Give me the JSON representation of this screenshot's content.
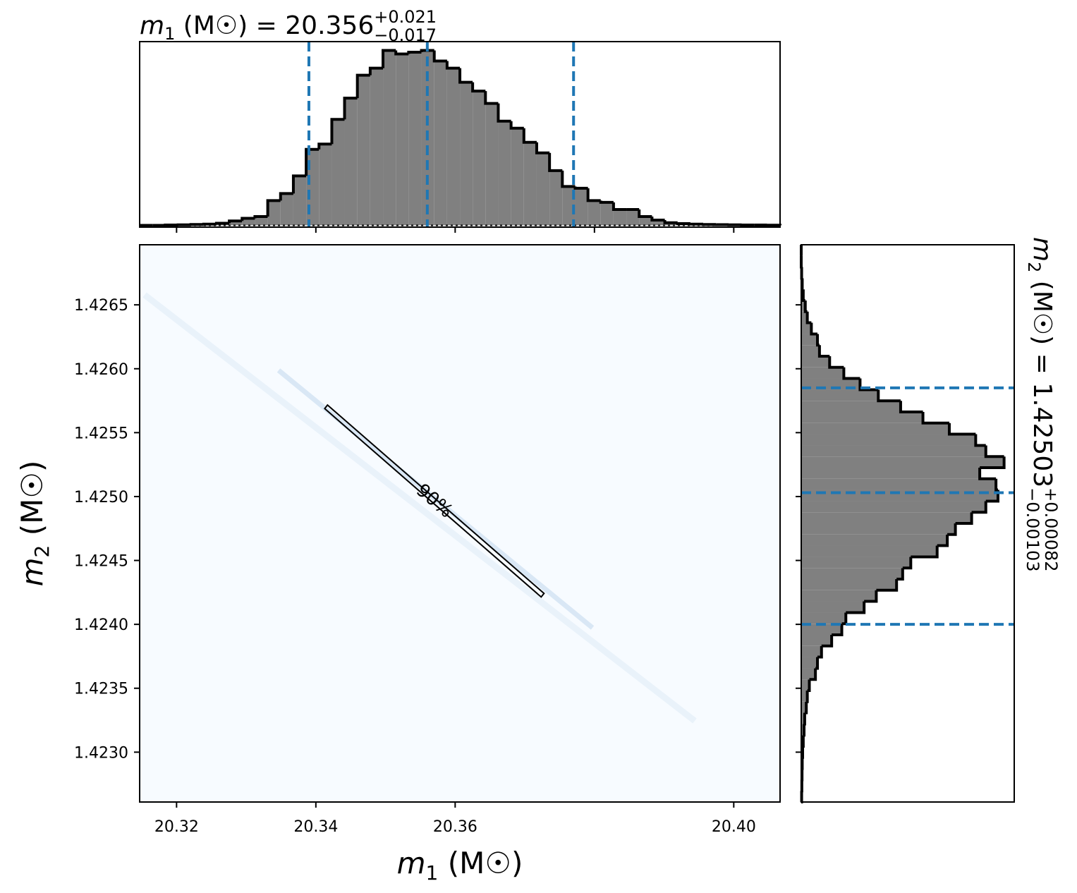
{
  "chart_data": [
    {
      "type": "histogram",
      "orientation": "vertical",
      "title": {
        "symbol": "m",
        "subscript": "1",
        "text": " (M☉) = 20.356",
        "plus": "+0.021",
        "minus": "−0.017"
      },
      "bins": [
        20.3147,
        20.31654,
        20.31838,
        20.32022,
        20.32206,
        20.3239,
        20.32573,
        20.32757,
        20.32941,
        20.33125,
        20.33309,
        20.33493,
        20.33677,
        20.33861,
        20.34045,
        20.34229,
        20.34412,
        20.34596,
        20.3478,
        20.34964,
        20.35148,
        20.35332,
        20.35516,
        20.357,
        20.35884,
        20.36068,
        20.36251,
        20.36435,
        20.36619,
        20.36803,
        20.36987,
        20.37171,
        20.37355,
        20.37539,
        20.37723,
        20.37907,
        20.3809,
        20.38274,
        20.38458,
        20.38642,
        20.38826,
        20.3901,
        20.39194,
        20.39378,
        20.39562,
        20.39746,
        20.39929,
        20.40113,
        20.40297,
        20.40481,
        20.40665
      ],
      "values": [
        0,
        0,
        0.002,
        0.003,
        0.005,
        0.007,
        0.012,
        0.025,
        0.04,
        0.05,
        0.14,
        0.18,
        0.28,
        0.43,
        0.46,
        0.6,
        0.72,
        0.85,
        0.89,
        0.99,
        0.97,
        0.98,
        0.99,
        0.93,
        0.89,
        0.81,
        0.76,
        0.69,
        0.59,
        0.55,
        0.47,
        0.41,
        0.31,
        0.22,
        0.21,
        0.14,
        0.13,
        0.09,
        0.09,
        0.05,
        0.03,
        0.015,
        0.01,
        0.007,
        0.005,
        0.004,
        0.003,
        0.002,
        0.002,
        0.001
      ],
      "color": "#808080",
      "quantile_color": "#1f77b4",
      "quantiles": [
        20.339,
        20.356,
        20.377
      ],
      "xlim": [
        20.3147,
        20.40665
      ],
      "ylim": [
        -0.01,
        1.04
      ],
      "xticks": [
        20.32,
        20.34,
        20.36,
        20.38,
        20.4
      ]
    },
    {
      "type": "density2d",
      "xlabel": {
        "symbol": "m",
        "subscript": "1",
        "unit": " (M☉)"
      },
      "ylabel": {
        "symbol": "m",
        "subscript": "2",
        "unit": " (M☉)"
      },
      "xlim": [
        20.3147,
        20.40665
      ],
      "ylim": [
        1.42261,
        1.42697
      ],
      "xticks": [
        20.32,
        20.34,
        20.36,
        {
          "value": 20.4,
          "label": "20.40"
        }
      ],
      "yticks": [
        {
          "value": 1.423,
          "label": "1.4230"
        },
        1.4235,
        {
          "value": 1.424,
          "label": "1.4240"
        },
        1.4245,
        {
          "value": 1.425,
          "label": "1.4250"
        },
        1.4255,
        {
          "value": 1.426,
          "label": "1.4260"
        },
        1.4265
      ],
      "contour": {
        "label": "90%",
        "x": [
          20.34127,
          20.34167,
          20.37276,
          20.37235
        ],
        "y": [
          1.425688,
          1.425716,
          1.424242,
          1.424214
        ]
      }
    },
    {
      "type": "histogram",
      "orientation": "horizontal",
      "title": {
        "symbol": "m",
        "subscript": "2",
        "text": " (M☉) = 1.42503",
        "plus": "+0.00082",
        "minus": "−0.00103"
      },
      "bins": [
        1.42261,
        1.422697,
        1.422784,
        1.422872,
        1.422959,
        1.423046,
        1.423133,
        1.42322,
        1.423308,
        1.423395,
        1.423482,
        1.423569,
        1.423656,
        1.423744,
        1.423831,
        1.423918,
        1.424005,
        1.424092,
        1.42418,
        1.424267,
        1.424354,
        1.424441,
        1.424528,
        1.424616,
        1.424703,
        1.42479,
        1.424877,
        1.424964,
        1.425052,
        1.425139,
        1.425226,
        1.425313,
        1.4254,
        1.425488,
        1.425575,
        1.425662,
        1.425749,
        1.425836,
        1.425924,
        1.426011,
        1.426098,
        1.426185,
        1.426272,
        1.42636,
        1.426447,
        1.426534,
        1.426621,
        1.426708,
        1.426796,
        1.426883,
        1.42697
      ],
      "values": [
        0.002,
        0.003,
        0.004,
        0.005,
        0.007,
        0.01,
        0.014,
        0.017,
        0.025,
        0.03,
        0.04,
        0.07,
        0.08,
        0.1,
        0.15,
        0.2,
        0.22,
        0.31,
        0.37,
        0.47,
        0.5,
        0.54,
        0.67,
        0.72,
        0.76,
        0.84,
        0.91,
        0.97,
        0.96,
        0.88,
        1.0,
        0.91,
        0.86,
        0.73,
        0.6,
        0.49,
        0.38,
        0.29,
        0.21,
        0.14,
        0.09,
        0.08,
        0.05,
        0.03,
        0.02,
        0.01,
        0.005,
        0.002,
        0,
        0
      ],
      "color": "#808080",
      "quantile_color": "#1f77b4",
      "quantiles": [
        1.424,
        1.42503,
        1.42585
      ],
      "xlim": [
        0,
        1.05
      ],
      "ylim": [
        1.42261,
        1.42697
      ],
      "yticks": [
        1.423,
        1.4235,
        1.424,
        1.4245,
        1.425,
        1.4255,
        1.426,
        1.4265
      ]
    }
  ]
}
